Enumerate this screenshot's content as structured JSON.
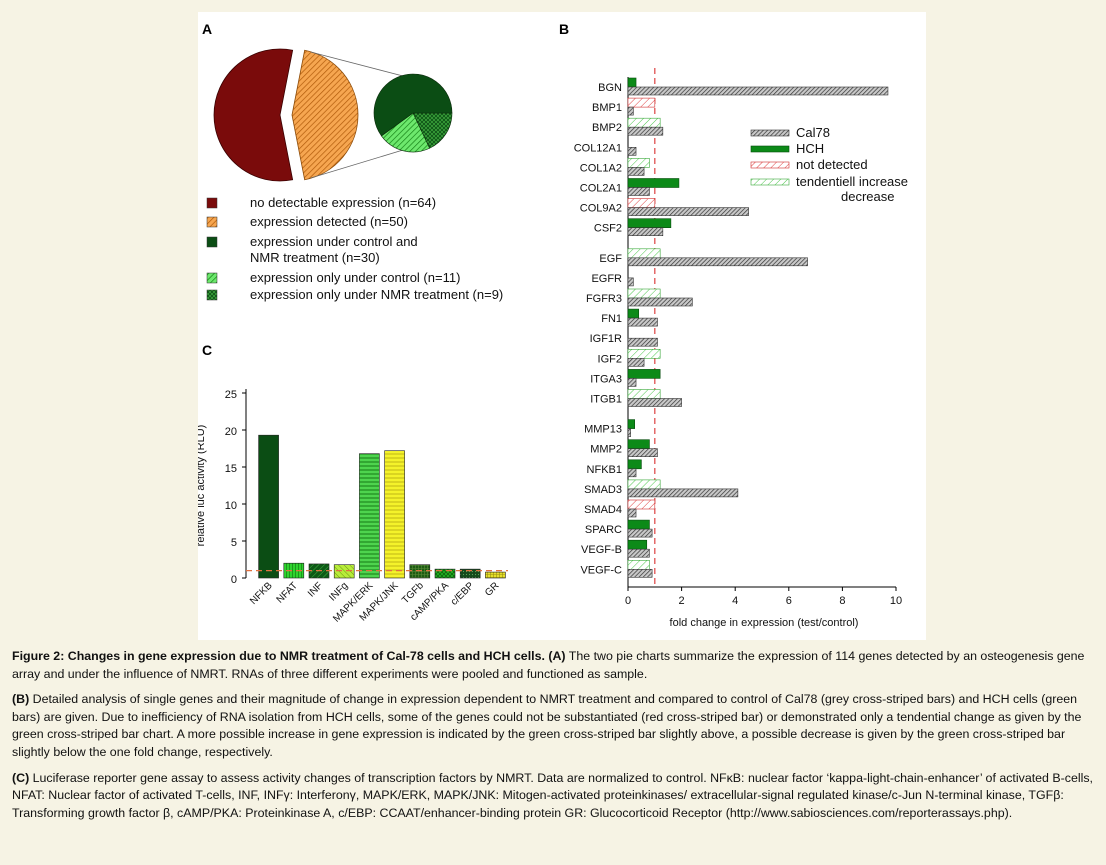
{
  "panel_letters": {
    "a": "A",
    "b": "B",
    "c": "C"
  },
  "legend_a": [
    {
      "label": "no detectable expression (n=64)",
      "color": "#7a0b0b",
      "pattern": "solid"
    },
    {
      "label": "expression detected (n=50)",
      "color": "#e8801e",
      "pattern": "hatch"
    },
    {
      "label": "expression under control and",
      "label2": "NMR treatment (n=30)",
      "color": "#0b4d14",
      "pattern": "solid"
    },
    {
      "label": "expression only under control (n=11)",
      "color": "#35d435",
      "pattern": "hatch"
    },
    {
      "label": "expression only under NMR treatment (n=9)",
      "color": "#0b4d14",
      "pattern": "cross"
    }
  ],
  "legend_b": [
    {
      "label": "Cal78",
      "pattern": "grey-hatch"
    },
    {
      "label": "HCH",
      "pattern": "green-solid"
    },
    {
      "label": "not detected",
      "pattern": "red-hatch"
    },
    {
      "label": "tendentiell increase",
      "pattern": "lightgreen-hatch"
    },
    {
      "label": "decrease",
      "pattern": "none"
    }
  ],
  "chart_data": [
    {
      "type": "pie",
      "panel": "A",
      "slices": [
        {
          "label": "no detectable expression (n=64)",
          "value": 64
        },
        {
          "label": "expression detected (n=50)",
          "value": 50
        }
      ],
      "inset": [
        {
          "label": "expression under control and NMR treatment (n=30)",
          "value": 30
        },
        {
          "label": "expression only under control (n=11)",
          "value": 11
        },
        {
          "label": "expression only under NMR treatment (n=9)",
          "value": 9
        }
      ]
    },
    {
      "type": "bar",
      "panel": "B",
      "orientation": "horizontal",
      "xlabel": "fold change in expression (test/control)",
      "xlim": [
        0,
        10
      ],
      "xticks": [
        "0",
        "2",
        "4",
        "6",
        "8",
        "10"
      ],
      "reference_line": 1,
      "groups": [
        [
          {
            "gene": "BGN",
            "hch": 0.3,
            "cal": 9.7,
            "hch_type": "green",
            "cal_type": "grey"
          },
          {
            "gene": "BMP1",
            "hch": 1.0,
            "cal": 0.2,
            "hch_type": "red",
            "cal_type": "grey"
          },
          {
            "gene": "BMP2",
            "hch": 1.2,
            "cal": 1.3,
            "hch_type": "lightgreen",
            "cal_type": "grey"
          },
          {
            "gene": "COL12A1",
            "hch": 0.0,
            "cal": 0.3,
            "hch_type": "green",
            "cal_type": "grey"
          },
          {
            "gene": "COL1A2",
            "hch": 0.8,
            "cal": 0.6,
            "hch_type": "lightgreen",
            "cal_type": "grey"
          },
          {
            "gene": "COL2A1",
            "hch": 1.9,
            "cal": 0.8,
            "hch_type": "green",
            "cal_type": "grey"
          },
          {
            "gene": "COL9A2",
            "hch": 1.0,
            "cal": 4.5,
            "hch_type": "red",
            "cal_type": "grey"
          },
          {
            "gene": "CSF2",
            "hch": 1.6,
            "cal": 1.3,
            "hch_type": "green",
            "cal_type": "grey"
          }
        ],
        [
          {
            "gene": "EGF",
            "hch": 1.2,
            "cal": 6.7,
            "hch_type": "lightgreen",
            "cal_type": "grey"
          },
          {
            "gene": "EGFR",
            "hch": 0.0,
            "cal": 0.2,
            "hch_type": "green",
            "cal_type": "grey"
          },
          {
            "gene": "FGFR3",
            "hch": 1.2,
            "cal": 2.4,
            "hch_type": "lightgreen",
            "cal_type": "grey"
          },
          {
            "gene": "FN1",
            "hch": 0.4,
            "cal": 1.1,
            "hch_type": "green",
            "cal_type": "grey"
          },
          {
            "gene": "IGF1R",
            "hch": 0.0,
            "cal": 1.1,
            "hch_type": "green",
            "cal_type": "grey"
          },
          {
            "gene": "IGF2",
            "hch": 1.2,
            "cal": 0.6,
            "hch_type": "lightgreen",
            "cal_type": "grey"
          },
          {
            "gene": "ITGA3",
            "hch": 1.2,
            "cal": 0.3,
            "hch_type": "green",
            "cal_type": "grey"
          },
          {
            "gene": "ITGB1",
            "hch": 1.2,
            "cal": 2.0,
            "hch_type": "lightgreen",
            "cal_type": "grey"
          }
        ],
        [
          {
            "gene": "MMP13",
            "hch": 0.25,
            "cal": 0.1,
            "hch_type": "green",
            "cal_type": "grey"
          },
          {
            "gene": "MMP2",
            "hch": 0.8,
            "cal": 1.1,
            "hch_type": "green",
            "cal_type": "grey"
          },
          {
            "gene": "NFKB1",
            "hch": 0.5,
            "cal": 0.3,
            "hch_type": "green",
            "cal_type": "grey"
          },
          {
            "gene": "SMAD3",
            "hch": 1.2,
            "cal": 4.1,
            "hch_type": "lightgreen",
            "cal_type": "grey"
          },
          {
            "gene": "SMAD4",
            "hch": 1.0,
            "cal": 0.3,
            "hch_type": "red",
            "cal_type": "grey"
          },
          {
            "gene": "SPARC",
            "hch": 0.8,
            "cal": 0.9,
            "hch_type": "green",
            "cal_type": "grey"
          },
          {
            "gene": "VEGF-B",
            "hch": 0.7,
            "cal": 0.8,
            "hch_type": "green",
            "cal_type": "grey"
          },
          {
            "gene": "VEGF-C",
            "hch": 0.8,
            "cal": 0.9,
            "hch_type": "lightgreen",
            "cal_type": "grey"
          }
        ]
      ]
    },
    {
      "type": "bar",
      "panel": "C",
      "ylabel": "relative luc activity (RLU)",
      "ylim": [
        0,
        25
      ],
      "yticks": [
        "0",
        "5",
        "10",
        "15",
        "20",
        "25"
      ],
      "reference_line": 1,
      "categories": [
        "NFKB",
        "NFAT",
        "INF",
        "INFg",
        "MAPK/ERK",
        "MAPK/JNK",
        "TGFb",
        "cAMP/PKA",
        "c/EBP",
        "GR"
      ],
      "values": [
        19.3,
        2.0,
        1.9,
        1.8,
        16.8,
        17.2,
        1.8,
        1.2,
        1.2,
        0.8
      ],
      "styles": [
        "darkgreen",
        "green-vert",
        "darkgreen-hatch",
        "lime-diag",
        "lime-horiz",
        "yellow-horiz",
        "darkgreen-grid",
        "green-cross",
        "darkgreen-dot",
        "yellow-grid"
      ]
    }
  ],
  "caption": {
    "p1_bold": "Figure 2: Changes in gene expression due to NMR treatment of Cal-78 cells and HCH cells. (A)",
    "p1_text": " The two pie charts summarize the expression of 114 genes detected by an osteogenesis gene array and under the influence of NMRT. RNAs of three different experiments were pooled and functioned as sample.",
    "p2_bold": "(B)",
    "p2_text": " Detailed analysis of single genes and their magnitude of change in expression dependent to NMRT treatment and compared to control of Cal78 (grey cross-striped bars) and HCH cells (green bars) are given. Due to inefficiency of RNA isolation from HCH cells, some of the genes could not be substantiated (red cross-striped bar) or demonstrated only a tendential change as given by the green cross-striped bar chart. A more possible increase in gene expression is indicated by the green cross-striped bar slightly above, a possible decrease is given by the green cross-striped bar slightly below the one fold change, respectively.",
    "p3_bold": "(C)",
    "p3_text": " Luciferase reporter gene assay to assess activity changes of transcription factors by NMRT. Data are normalized to control. NFκB: nuclear factor ‘kappa-light-chain-enhancer’ of activated B-cells, NFAT: Nuclear factor of activated T-cells, INF, INFγ: Interferonγ, MAPK/ERK, MAPK/JNK: Mitogen-activated proteinkinases/ extracellular-signal regulated kinase/c-Jun N-terminal kinase, TGFβ: Transforming growth factor β, cAMP/PKA: Proteinkinase A, c/EBP: CCAAT/enhancer-binding protein GR: Glucocorticoid Receptor (http://www.sabiosciences.com/reporterassays.php)."
  }
}
